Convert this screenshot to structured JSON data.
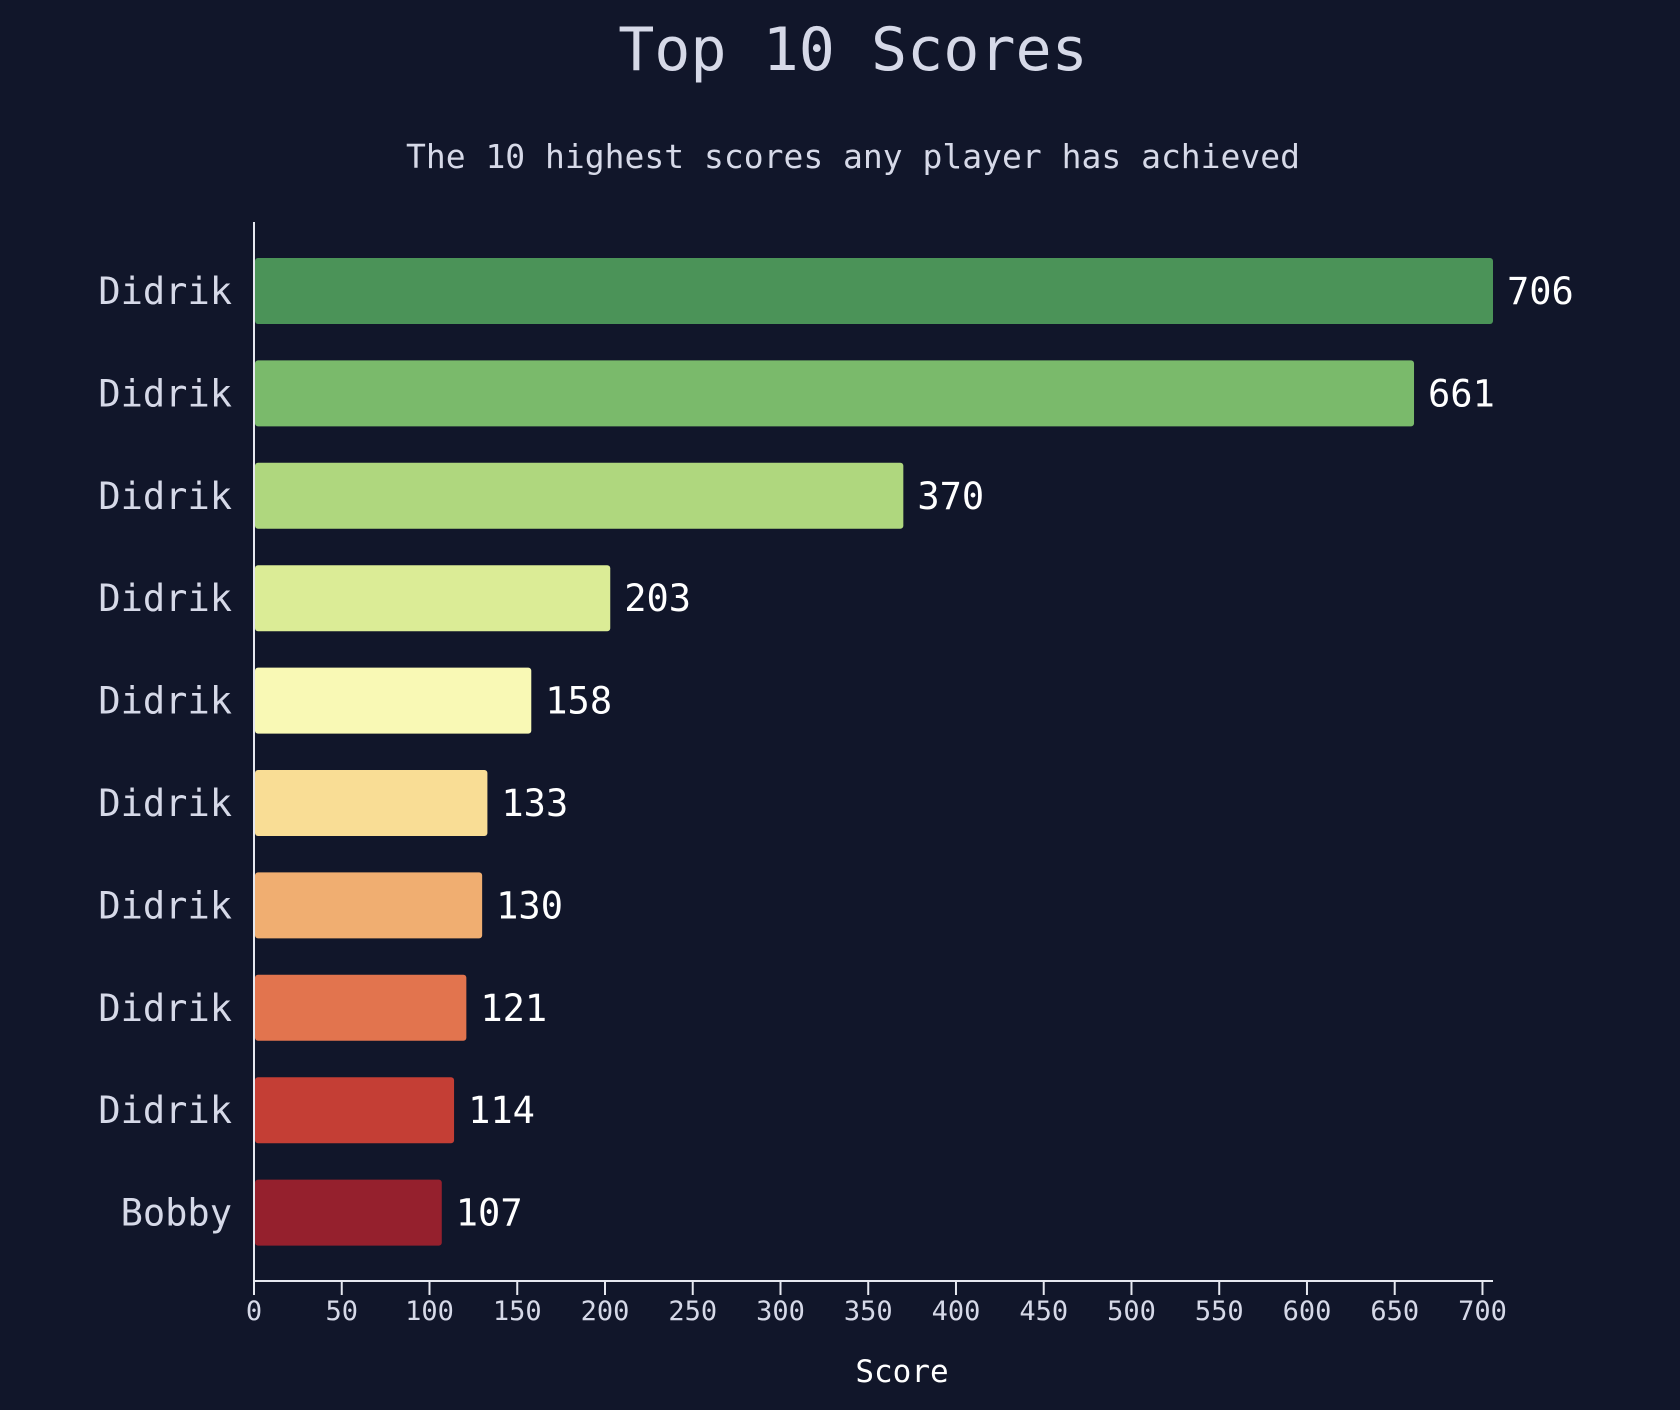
{
  "chart_data": {
    "type": "bar",
    "orientation": "horizontal",
    "title": "Top 10 Scores",
    "subtitle": "The 10 highest scores any player has achieved",
    "xlabel": "Score",
    "ylabel": "",
    "categories": [
      "Didrik",
      "Didrik",
      "Didrik",
      "Didrik",
      "Didrik",
      "Didrik",
      "Didrik",
      "Didrik",
      "Didrik",
      "Bobby"
    ],
    "values": [
      706,
      661,
      370,
      203,
      158,
      133,
      130,
      121,
      114,
      107
    ],
    "bar_colors": [
      "#4b9358",
      "#7aba6b",
      "#afd77e",
      "#dbec96",
      "#f9f9b5",
      "#f9dd95",
      "#f0ae71",
      "#e2744e",
      "#c43e35",
      "#95202d"
    ],
    "xlim": [
      0,
      706
    ],
    "xticks": [
      0,
      50,
      100,
      150,
      200,
      250,
      300,
      350,
      400,
      450,
      500,
      550,
      600,
      650,
      700
    ],
    "grid": false,
    "legend": "none",
    "background": "#11162a",
    "text_color": "#d6d9e8"
  }
}
